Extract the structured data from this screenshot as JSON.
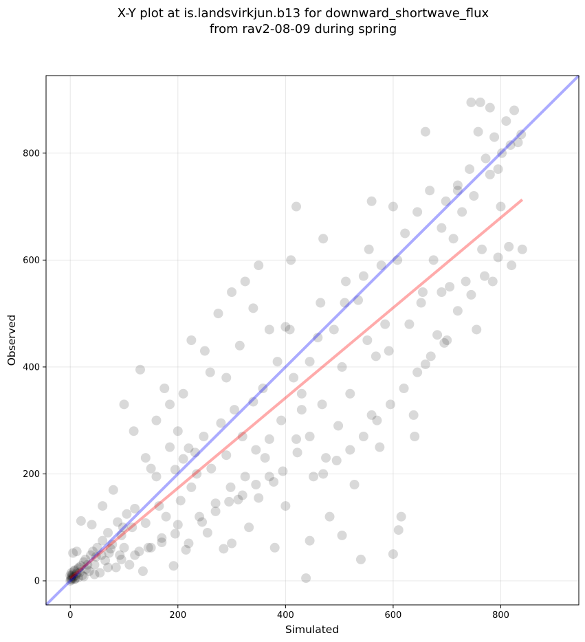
{
  "chart_data": {
    "type": "scatter",
    "title": "X-Y plot at is.landsvirkjun.b13 for downward_shortwave_flux",
    "subtitle": "from rav2-08-09 during spring",
    "xlabel": "Simulated",
    "ylabel": "Observed",
    "xlim": [
      -45,
      945
    ],
    "ylim": [
      -45,
      945
    ],
    "xticks": [
      0,
      200,
      400,
      600,
      800
    ],
    "yticks": [
      0,
      200,
      400,
      600,
      800
    ],
    "grid": true,
    "point_color": "#000000",
    "point_alpha": 0.15,
    "lines": [
      {
        "color": "#0000ff",
        "alpha": 0.33,
        "x": [
          -45,
          945
        ],
        "y": [
          -45,
          945
        ]
      },
      {
        "color": "#ff0000",
        "alpha": 0.33,
        "x": [
          0,
          840
        ],
        "y": [
          5,
          713
        ]
      }
    ],
    "points": [
      [
        0,
        0
      ],
      [
        1,
        3
      ],
      [
        2,
        6
      ],
      [
        3,
        2
      ],
      [
        0,
        10
      ],
      [
        4,
        12
      ],
      [
        5,
        5
      ],
      [
        6,
        8
      ],
      [
        2,
        15
      ],
      [
        8,
        3
      ],
      [
        10,
        10
      ],
      [
        12,
        14
      ],
      [
        15,
        6
      ],
      [
        8,
        20
      ],
      [
        14,
        22
      ],
      [
        18,
        16
      ],
      [
        20,
        28
      ],
      [
        22,
        10
      ],
      [
        25,
        35
      ],
      [
        30,
        22
      ],
      [
        28,
        40
      ],
      [
        35,
        18
      ],
      [
        38,
        48
      ],
      [
        42,
        55
      ],
      [
        45,
        30
      ],
      [
        50,
        62
      ],
      [
        55,
        15
      ],
      [
        58,
        48
      ],
      [
        60,
        75
      ],
      [
        65,
        38
      ],
      [
        70,
        90
      ],
      [
        72,
        52
      ],
      [
        78,
        68
      ],
      [
        85,
        25
      ],
      [
        88,
        110
      ],
      [
        92,
        48
      ],
      [
        95,
        85
      ],
      [
        100,
        62
      ],
      [
        105,
        125
      ],
      [
        110,
        30
      ],
      [
        115,
        100
      ],
      [
        120,
        135
      ],
      [
        128,
        55
      ],
      [
        135,
        18
      ],
      [
        140,
        108
      ],
      [
        150,
        62
      ],
      [
        160,
        195
      ],
      [
        165,
        140
      ],
      [
        170,
        80
      ],
      [
        178,
        120
      ],
      [
        185,
        250
      ],
      [
        192,
        28
      ],
      [
        195,
        208
      ],
      [
        200,
        105
      ],
      [
        205,
        150
      ],
      [
        210,
        228
      ],
      [
        215,
        58
      ],
      [
        220,
        248
      ],
      [
        225,
        175
      ],
      [
        232,
        240
      ],
      [
        240,
        120
      ],
      [
        248,
        270
      ],
      [
        255,
        90
      ],
      [
        262,
        210
      ],
      [
        270,
        145
      ],
      [
        280,
        295
      ],
      [
        285,
        60
      ],
      [
        290,
        235
      ],
      [
        298,
        175
      ],
      [
        305,
        320
      ],
      [
        312,
        152
      ],
      [
        320,
        270
      ],
      [
        325,
        195
      ],
      [
        332,
        100
      ],
      [
        340,
        335
      ],
      [
        345,
        245
      ],
      [
        350,
        155
      ],
      [
        358,
        360
      ],
      [
        362,
        230
      ],
      [
        370,
        265
      ],
      [
        378,
        185
      ],
      [
        385,
        410
      ],
      [
        392,
        300
      ],
      [
        400,
        140
      ],
      [
        408,
        470
      ],
      [
        415,
        380
      ],
      [
        422,
        240
      ],
      [
        430,
        350
      ],
      [
        438,
        5
      ],
      [
        445,
        410
      ],
      [
        452,
        195
      ],
      [
        460,
        455
      ],
      [
        468,
        330
      ],
      [
        475,
        230
      ],
      [
        482,
        120
      ],
      [
        490,
        470
      ],
      [
        498,
        290
      ],
      [
        505,
        400
      ],
      [
        512,
        560
      ],
      [
        520,
        350
      ],
      [
        528,
        180
      ],
      [
        535,
        525
      ],
      [
        545,
        570
      ],
      [
        552,
        450
      ],
      [
        560,
        310
      ],
      [
        568,
        420
      ],
      [
        578,
        590
      ],
      [
        585,
        480
      ],
      [
        592,
        430
      ],
      [
        600,
        50
      ],
      [
        608,
        600
      ],
      [
        615,
        120
      ],
      [
        622,
        650
      ],
      [
        630,
        480
      ],
      [
        638,
        310
      ],
      [
        645,
        690
      ],
      [
        652,
        520
      ],
      [
        660,
        405
      ],
      [
        668,
        730
      ],
      [
        675,
        600
      ],
      [
        682,
        460
      ],
      [
        690,
        660
      ],
      [
        698,
        710
      ],
      [
        705,
        550
      ],
      [
        712,
        640
      ],
      [
        720,
        740
      ],
      [
        728,
        690
      ],
      [
        735,
        560
      ],
      [
        742,
        770
      ],
      [
        750,
        720
      ],
      [
        758,
        840
      ],
      [
        765,
        620
      ],
      [
        772,
        790
      ],
      [
        780,
        760
      ],
      [
        788,
        830
      ],
      [
        795,
        770
      ],
      [
        802,
        800
      ],
      [
        810,
        860
      ],
      [
        818,
        815
      ],
      [
        825,
        880
      ],
      [
        832,
        820
      ],
      [
        838,
        835
      ],
      [
        762,
        895
      ],
      [
        780,
        885
      ],
      [
        745,
        895
      ],
      [
        690,
        540
      ],
      [
        640,
        270
      ],
      [
        610,
        95
      ],
      [
        575,
        250
      ],
      [
        540,
        40
      ],
      [
        505,
        85
      ],
      [
        470,
        640
      ],
      [
        445,
        75
      ],
      [
        410,
        600
      ],
      [
        380,
        62
      ],
      [
        350,
        590
      ],
      [
        325,
        560
      ],
      [
        300,
        540
      ],
      [
        275,
        500
      ],
      [
        250,
        430
      ],
      [
        225,
        450
      ],
      [
        200,
        280
      ],
      [
        175,
        360
      ],
      [
        150,
        210
      ],
      [
        130,
        395
      ],
      [
        100,
        330
      ],
      [
        80,
        170
      ],
      [
        60,
        140
      ],
      [
        40,
        105
      ],
      [
        20,
        112
      ],
      [
        12,
        55
      ],
      [
        5,
        52
      ],
      [
        300,
        70
      ],
      [
        420,
        700
      ],
      [
        560,
        710
      ],
      [
        660,
        840
      ],
      [
        720,
        730
      ],
      [
        800,
        700
      ],
      [
        820,
        590
      ],
      [
        840,
        620
      ],
      [
        785,
        560
      ],
      [
        755,
        470
      ],
      [
        700,
        450
      ],
      [
        655,
        540
      ],
      [
        600,
        700
      ],
      [
        555,
        620
      ],
      [
        510,
        520
      ],
      [
        465,
        520
      ],
      [
        430,
        320
      ],
      [
        400,
        475
      ],
      [
        370,
        470
      ],
      [
        340,
        510
      ],
      [
        315,
        440
      ],
      [
        290,
        380
      ],
      [
        260,
        390
      ],
      [
        235,
        200
      ],
      [
        210,
        350
      ],
      [
        185,
        330
      ],
      [
        160,
        300
      ],
      [
        140,
        230
      ],
      [
        118,
        280
      ],
      [
        98,
        100
      ],
      [
        75,
        60
      ],
      [
        48,
        45
      ],
      [
        32,
        30
      ],
      [
        16,
        25
      ],
      [
        7,
        18
      ],
      [
        3,
        9
      ],
      [
        9,
        4
      ],
      [
        25,
        8
      ],
      [
        45,
        12
      ],
      [
        70,
        25
      ],
      [
        95,
        40
      ],
      [
        120,
        48
      ],
      [
        145,
        62
      ],
      [
        170,
        72
      ],
      [
        195,
        88
      ],
      [
        220,
        70
      ],
      [
        245,
        110
      ],
      [
        270,
        130
      ],
      [
        295,
        148
      ],
      [
        320,
        160
      ],
      [
        345,
        180
      ],
      [
        370,
        195
      ],
      [
        395,
        205
      ],
      [
        420,
        265
      ],
      [
        445,
        270
      ],
      [
        470,
        200
      ],
      [
        495,
        225
      ],
      [
        520,
        245
      ],
      [
        545,
        270
      ],
      [
        570,
        300
      ],
      [
        595,
        330
      ],
      [
        620,
        360
      ],
      [
        645,
        390
      ],
      [
        670,
        420
      ],
      [
        695,
        445
      ],
      [
        720,
        505
      ],
      [
        745,
        535
      ],
      [
        770,
        570
      ],
      [
        795,
        605
      ],
      [
        815,
        625
      ]
    ]
  }
}
